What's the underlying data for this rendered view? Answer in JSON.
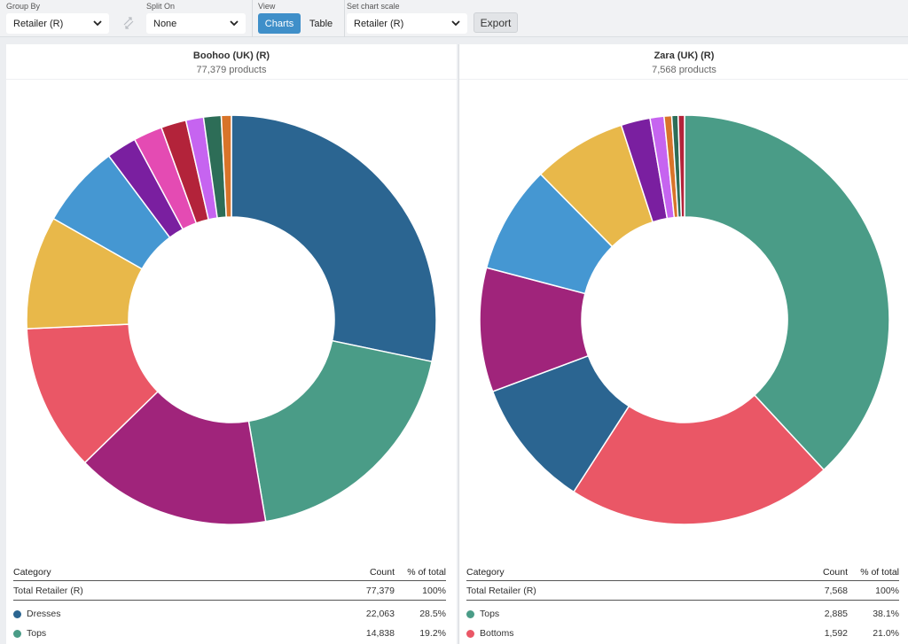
{
  "toolbar": {
    "group_by": {
      "label": "Group By",
      "value": "Retailer (R)"
    },
    "split_on": {
      "label": "Split On",
      "value": "None"
    },
    "view": {
      "label": "View",
      "charts": "Charts",
      "table": "Table",
      "active": "Charts"
    },
    "chart_scale": {
      "label": "Set chart scale",
      "value": "Retailer (R)"
    },
    "export_label": "Export"
  },
  "icons": {
    "caret": "chevron-down-icon",
    "swap": "swap-arrows-icon"
  },
  "colors": {
    "blue_dark": "#2b6591",
    "teal": "#4a9c87",
    "magenta": "#a0247b",
    "red": "#ea5766",
    "yellow": "#e8b84a",
    "blue_light": "#4597d2",
    "purple": "#7a1fa0",
    "pink": "#e44bb3",
    "crimson": "#b3233a",
    "lilac": "#c664f0",
    "dark_green": "#2d6d57",
    "orange": "#d8742a"
  },
  "panels": [
    {
      "title": "Boohoo (UK) (R)",
      "subtitle": "77,379 products",
      "table": {
        "header": {
          "category": "Category",
          "count": "Count",
          "pct": "% of total"
        },
        "total": {
          "category": "Total Retailer (R)",
          "count": "77,379",
          "pct": "100%"
        },
        "rows": [
          {
            "category": "Dresses",
            "count": "22,063",
            "pct": "28.5%",
            "color": "#2b6591"
          },
          {
            "category": "Tops",
            "count": "14,838",
            "pct": "19.2%",
            "color": "#4a9c87"
          }
        ]
      }
    },
    {
      "title": "Zara (UK) (R)",
      "subtitle": "7,568 products",
      "table": {
        "header": {
          "category": "Category",
          "count": "Count",
          "pct": "% of total"
        },
        "total": {
          "category": "Total Retailer (R)",
          "count": "7,568",
          "pct": "100%"
        },
        "rows": [
          {
            "category": "Tops",
            "count": "2,885",
            "pct": "38.1%",
            "color": "#4a9c87"
          },
          {
            "category": "Bottoms",
            "count": "1,592",
            "pct": "21.0%",
            "color": "#ea5766"
          }
        ]
      }
    }
  ],
  "chart_data": [
    {
      "type": "pie",
      "title": "Boohoo (UK) (R)",
      "slices": [
        {
          "category": "Dresses",
          "percent": 28.5,
          "color": "#2b6591"
        },
        {
          "percent": 19.2,
          "color": "#4a9c87"
        },
        {
          "percent": 15.5,
          "color": "#a0247b"
        },
        {
          "percent": 11.7,
          "color": "#ea5766"
        },
        {
          "percent": 9.0,
          "color": "#e8b84a"
        },
        {
          "percent": 6.6,
          "color": "#4597d2"
        },
        {
          "percent": 2.4,
          "color": "#7a1fa0"
        },
        {
          "percent": 2.3,
          "color": "#e44bb3"
        },
        {
          "percent": 2.0,
          "color": "#b3233a"
        },
        {
          "percent": 1.4,
          "color": "#c664f0"
        },
        {
          "percent": 1.4,
          "color": "#2d6d57"
        },
        {
          "percent": 0.8,
          "color": "#d8742a"
        }
      ]
    },
    {
      "type": "pie",
      "title": "Zara (UK) (R)",
      "slices": [
        {
          "category": "Tops",
          "percent": 38.1,
          "color": "#4a9c87"
        },
        {
          "category": "Bottoms",
          "percent": 21.0,
          "color": "#ea5766"
        },
        {
          "percent": 10.2,
          "color": "#2b6591"
        },
        {
          "percent": 9.8,
          "color": "#a0247b"
        },
        {
          "percent": 8.5,
          "color": "#4597d2"
        },
        {
          "percent": 7.4,
          "color": "#e8b84a"
        },
        {
          "percent": 2.3,
          "color": "#7a1fa0"
        },
        {
          "percent": 1.1,
          "color": "#c664f0"
        },
        {
          "percent": 0.6,
          "color": "#d8742a"
        },
        {
          "percent": 0.5,
          "color": "#2d6d57"
        },
        {
          "percent": 0.5,
          "color": "#b3233a"
        }
      ]
    }
  ]
}
